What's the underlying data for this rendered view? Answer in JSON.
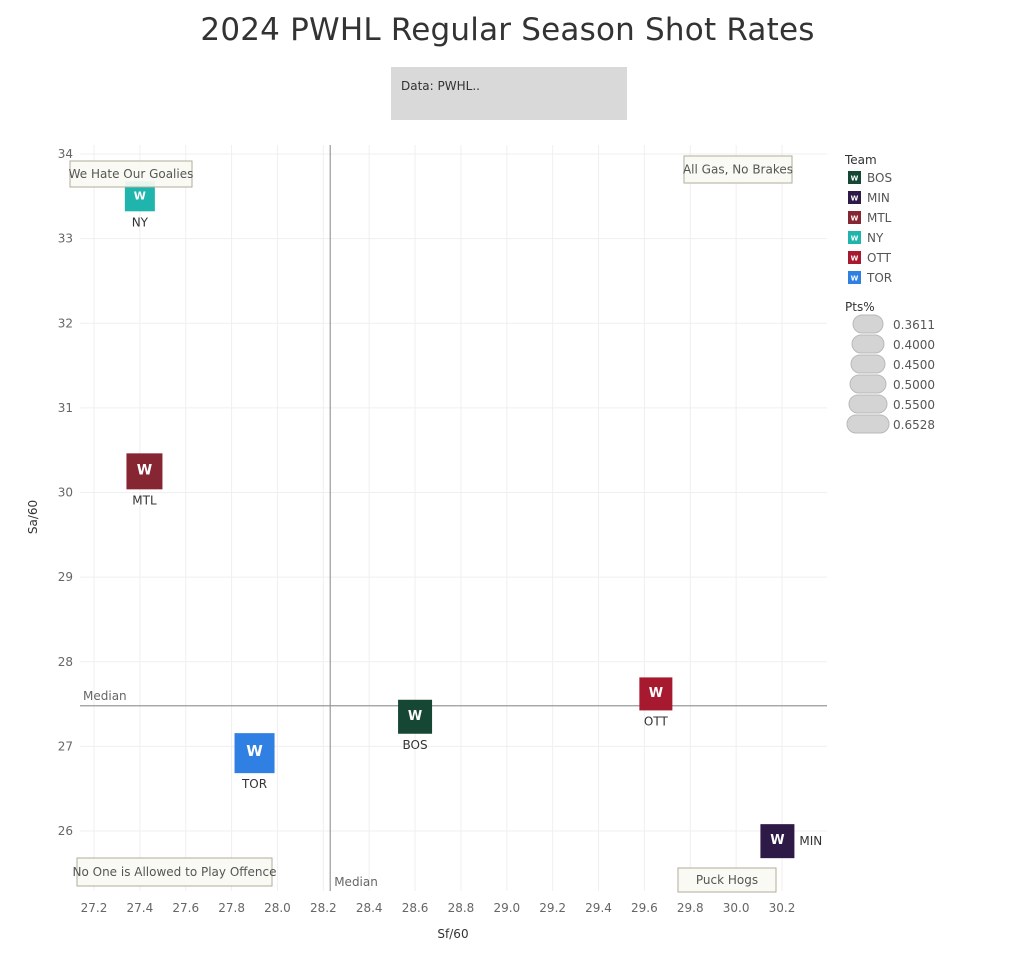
{
  "title": "2024 PWHL Regular Season Shot Rates",
  "data_note": "Data: PWHL..",
  "chart_data": {
    "type": "scatter",
    "title": "2024 PWHL Regular Season Shot Rates",
    "xlabel": "Sf/60",
    "ylabel": "Sa/60",
    "xlim": [
      27.15,
      30.4
    ],
    "ylim": [
      25.3,
      34.1
    ],
    "x_ticks": [
      "27.2",
      "27.4",
      "27.6",
      "27.8",
      "28.0",
      "28.2",
      "28.4",
      "28.6",
      "28.8",
      "29.0",
      "29.2",
      "29.4",
      "29.6",
      "29.8",
      "30.0",
      "30.2"
    ],
    "y_ticks": [
      "26",
      "27",
      "28",
      "29",
      "30",
      "31",
      "32",
      "33",
      "34"
    ],
    "grid": true,
    "legend_position": "right",
    "points": [
      {
        "team": "NY",
        "x": 27.4,
        "y": 33.5,
        "color": "#1fb5ad"
      },
      {
        "team": "MTL",
        "x": 27.42,
        "y": 30.25,
        "color": "#862633"
      },
      {
        "team": "BOS",
        "x": 28.6,
        "y": 27.35,
        "color": "#154734"
      },
      {
        "team": "OTT",
        "x": 29.65,
        "y": 27.62,
        "color": "#a6192e"
      },
      {
        "team": "TOR",
        "x": 27.9,
        "y": 26.92,
        "color": "#307fe2"
      },
      {
        "team": "MIN",
        "x": 30.18,
        "y": 25.88,
        "color": "#2e1a47"
      }
    ],
    "median_x": 28.23,
    "median_y": 27.48,
    "median_label": "Median",
    "quadrant_labels": {
      "top_left": "We Hate Our Goalies",
      "top_right": "All Gas, No Brakes",
      "bottom_left": "No One is Allowed to Play Offence",
      "bottom_right": "Puck Hogs"
    },
    "legend_team": {
      "title": "Team",
      "items": [
        {
          "label": "BOS",
          "color": "#154734"
        },
        {
          "label": "MIN",
          "color": "#2e1a47"
        },
        {
          "label": "MTL",
          "color": "#862633"
        },
        {
          "label": "NY",
          "color": "#1fb5ad"
        },
        {
          "label": "OTT",
          "color": "#a6192e"
        },
        {
          "label": "TOR",
          "color": "#307fe2"
        }
      ]
    },
    "legend_size": {
      "title": "Pts%",
      "items": [
        "0.3611",
        "0.4000",
        "0.4500",
        "0.5000",
        "0.5500",
        "0.6528"
      ]
    }
  }
}
